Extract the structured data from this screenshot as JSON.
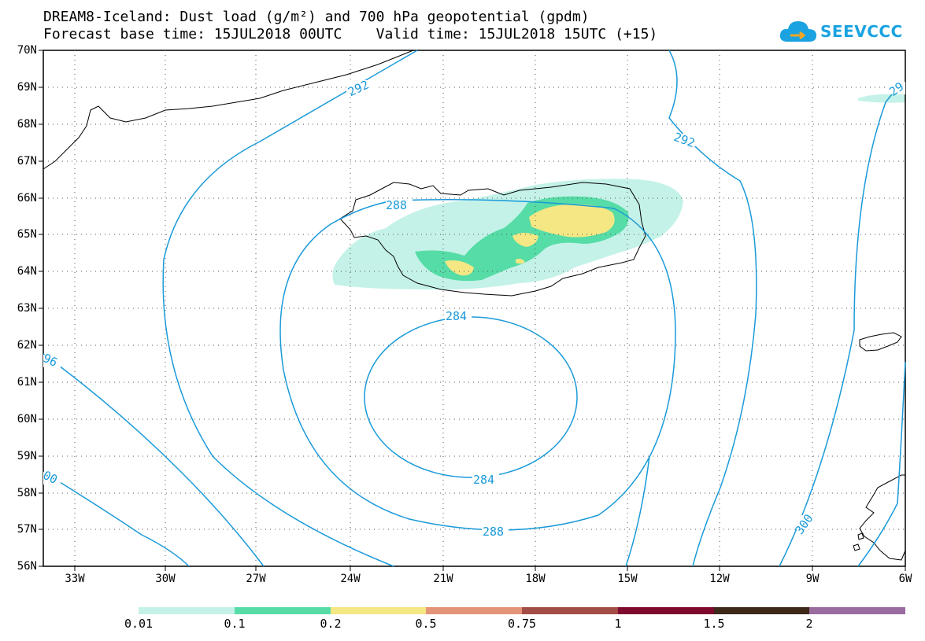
{
  "title": {
    "line1": "DREAM8-Iceland: Dust load (g/m²) and 700 hPa geopotential (gpdm)",
    "line2": "Forecast base time: 15JUL2018 00UTC    Valid time: 15JUL2018 15UTC (+15)"
  },
  "logo": {
    "text": "SEEVCCC",
    "icon": "cloud-icon"
  },
  "lat_labels": [
    "70N",
    "69N",
    "68N",
    "67N",
    "66N",
    "65N",
    "64N",
    "63N",
    "62N",
    "61N",
    "60N",
    "59N",
    "58N",
    "57N",
    "56N"
  ],
  "lon_labels": [
    "33W",
    "30W",
    "27W",
    "24W",
    "21W",
    "18W",
    "15W",
    "12W",
    "9W",
    "6W"
  ],
  "contour_labels": [
    "292",
    "292",
    "29",
    "288",
    "284",
    "284",
    "288",
    "96",
    "00",
    "300"
  ],
  "colorbar": {
    "labels": [
      "0.01",
      "0.1",
      "0.2",
      "0.5",
      "0.75",
      "1",
      "1.5",
      "2"
    ],
    "colors": [
      "#c4f2e8",
      "#56dca6",
      "#f4e784",
      "#e49577",
      "#a34d46",
      "#7e0a2e",
      "#3d281a",
      "#996b9f"
    ]
  },
  "colors": {
    "contour": "#1a9ad9",
    "coast": "#000000",
    "dust_low": "#c4f2e8",
    "dust_mid": "#56dca6",
    "dust_high": "#f4e784"
  }
}
